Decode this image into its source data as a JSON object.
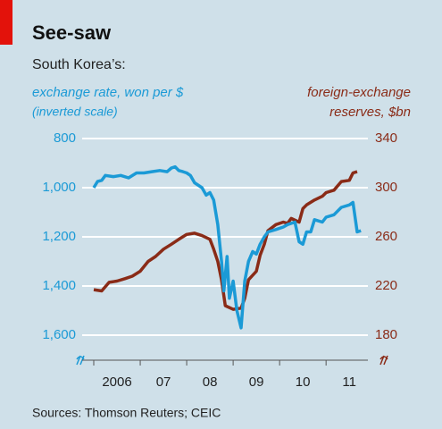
{
  "chart_data": {
    "type": "line",
    "title": "See-saw",
    "subtitle": "South Korea’s:",
    "y_label": "exchange rate, won per $",
    "y_label_note": "(inverted scale)",
    "y2_label_lines": [
      "foreign-exchange",
      "reserves, $bn"
    ],
    "source": "Sources: Thomson Reuters; CEIC",
    "ylim": [
      800,
      1600
    ],
    "y_inverted": true,
    "yticks": [
      {
        "value": 800,
        "label": "800"
      },
      {
        "value": 1000,
        "label": "1,000"
      },
      {
        "value": 1200,
        "label": "1,200"
      },
      {
        "value": 1400,
        "label": "1,400"
      },
      {
        "value": 1600,
        "label": "1,600"
      }
    ],
    "y2lim": [
      180,
      340
    ],
    "y2ticks": [
      340,
      300,
      260,
      220,
      180
    ],
    "xlim": [
      2005.75,
      2011.9
    ],
    "xticks": [
      {
        "value": 2006,
        "label": "2006"
      },
      {
        "value": 2007,
        "label": "07"
      },
      {
        "value": 2008,
        "label": "08"
      },
      {
        "value": 2009,
        "label": "09"
      },
      {
        "value": 2010,
        "label": "10"
      },
      {
        "value": 2011,
        "label": "11"
      }
    ],
    "grid": true,
    "series": [
      {
        "name": "exchange rate, won per $",
        "color": "#1b9ad6",
        "axis": "y",
        "x": [
          2006.0,
          2006.08,
          2006.17,
          2006.25,
          2006.42,
          2006.58,
          2006.75,
          2006.92,
          2007.08,
          2007.25,
          2007.42,
          2007.58,
          2007.67,
          2007.75,
          2007.83,
          2007.92,
          2008.0,
          2008.08,
          2008.17,
          2008.33,
          2008.42,
          2008.5,
          2008.58,
          2008.67,
          2008.75,
          2008.8,
          2008.87,
          2008.92,
          2009.0,
          2009.08,
          2009.17,
          2009.25,
          2009.33,
          2009.42,
          2009.5,
          2009.58,
          2009.67,
          2009.75,
          2009.92,
          2010.08,
          2010.17,
          2010.33,
          2010.42,
          2010.5,
          2010.58,
          2010.67,
          2010.75,
          2010.92,
          2011.0,
          2011.17,
          2011.33,
          2011.5,
          2011.58,
          2011.67,
          2011.75
        ],
        "values": [
          1000,
          975,
          970,
          950,
          955,
          950,
          960,
          940,
          940,
          935,
          930,
          935,
          920,
          915,
          930,
          935,
          940,
          950,
          980,
          1000,
          1030,
          1020,
          1050,
          1150,
          1300,
          1420,
          1280,
          1450,
          1380,
          1500,
          1570,
          1380,
          1300,
          1260,
          1270,
          1230,
          1200,
          1180,
          1170,
          1160,
          1150,
          1140,
          1220,
          1230,
          1180,
          1180,
          1130,
          1140,
          1120,
          1110,
          1080,
          1070,
          1060,
          1180,
          1175
        ]
      },
      {
        "name": "foreign-exchange reserves, $bn",
        "color": "#8a2b17",
        "axis": "y2",
        "x": [
          2006.0,
          2006.17,
          2006.33,
          2006.5,
          2006.67,
          2006.83,
          2007.0,
          2007.17,
          2007.33,
          2007.5,
          2007.67,
          2007.83,
          2008.0,
          2008.17,
          2008.33,
          2008.5,
          2008.58,
          2008.67,
          2008.75,
          2008.83,
          2009.0,
          2009.17,
          2009.25,
          2009.33,
          2009.5,
          2009.58,
          2009.67,
          2009.75,
          2009.92,
          2010.08,
          2010.17,
          2010.25,
          2010.42,
          2010.5,
          2010.58,
          2010.75,
          2010.92,
          2011.0,
          2011.17,
          2011.33,
          2011.5,
          2011.58,
          2011.67
        ],
        "values": [
          217,
          216,
          223,
          224,
          226,
          228,
          232,
          240,
          244,
          250,
          254,
          258,
          262,
          263,
          261,
          258,
          250,
          240,
          225,
          204,
          201,
          202,
          210,
          225,
          232,
          245,
          254,
          265,
          270,
          272,
          271,
          275,
          272,
          283,
          286,
          290,
          293,
          296,
          298,
          305,
          306,
          312,
          313
        ]
      }
    ]
  }
}
